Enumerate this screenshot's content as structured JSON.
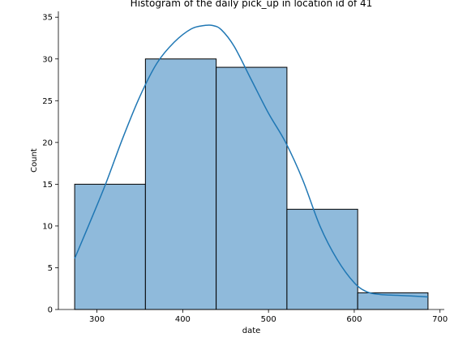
{
  "chart_data": {
    "type": "bar",
    "title": "Histogram of the daily pick_up in location id of 41",
    "xlabel": "date",
    "ylabel": "Count",
    "xlim": [
      255,
      705
    ],
    "ylim": [
      0,
      35.7
    ],
    "xticks": [
      300,
      400,
      500,
      600,
      700
    ],
    "yticks": [
      0,
      5,
      10,
      15,
      20,
      25,
      30,
      35
    ],
    "bins": [
      {
        "x0": 274,
        "x1": 356.5,
        "value": 15
      },
      {
        "x0": 356.5,
        "x1": 439,
        "value": 30
      },
      {
        "x0": 439,
        "x1": 521.5,
        "value": 29
      },
      {
        "x0": 521.5,
        "x1": 604,
        "value": 12
      },
      {
        "x0": 604,
        "x1": 686,
        "value": 2
      }
    ],
    "kde": {
      "x": [
        274,
        290,
        310,
        330,
        350,
        370,
        390,
        410,
        425,
        435,
        445,
        460,
        480,
        500,
        520,
        540,
        560,
        580,
        600,
        615,
        630,
        650,
        670,
        686
      ],
      "y": [
        6.1,
        10.0,
        15.0,
        20.5,
        25.5,
        29.5,
        32.0,
        33.6,
        34.0,
        34.0,
        33.5,
        31.5,
        27.5,
        23.5,
        20.0,
        15.5,
        10.0,
        6.0,
        3.2,
        2.1,
        1.8,
        1.7,
        1.6,
        1.5
      ]
    },
    "colors": {
      "bar_fill": "#8fbadb",
      "bar_edge": "#000000",
      "kde_line": "#1f77b4"
    },
    "grid": false,
    "legend": "none"
  }
}
